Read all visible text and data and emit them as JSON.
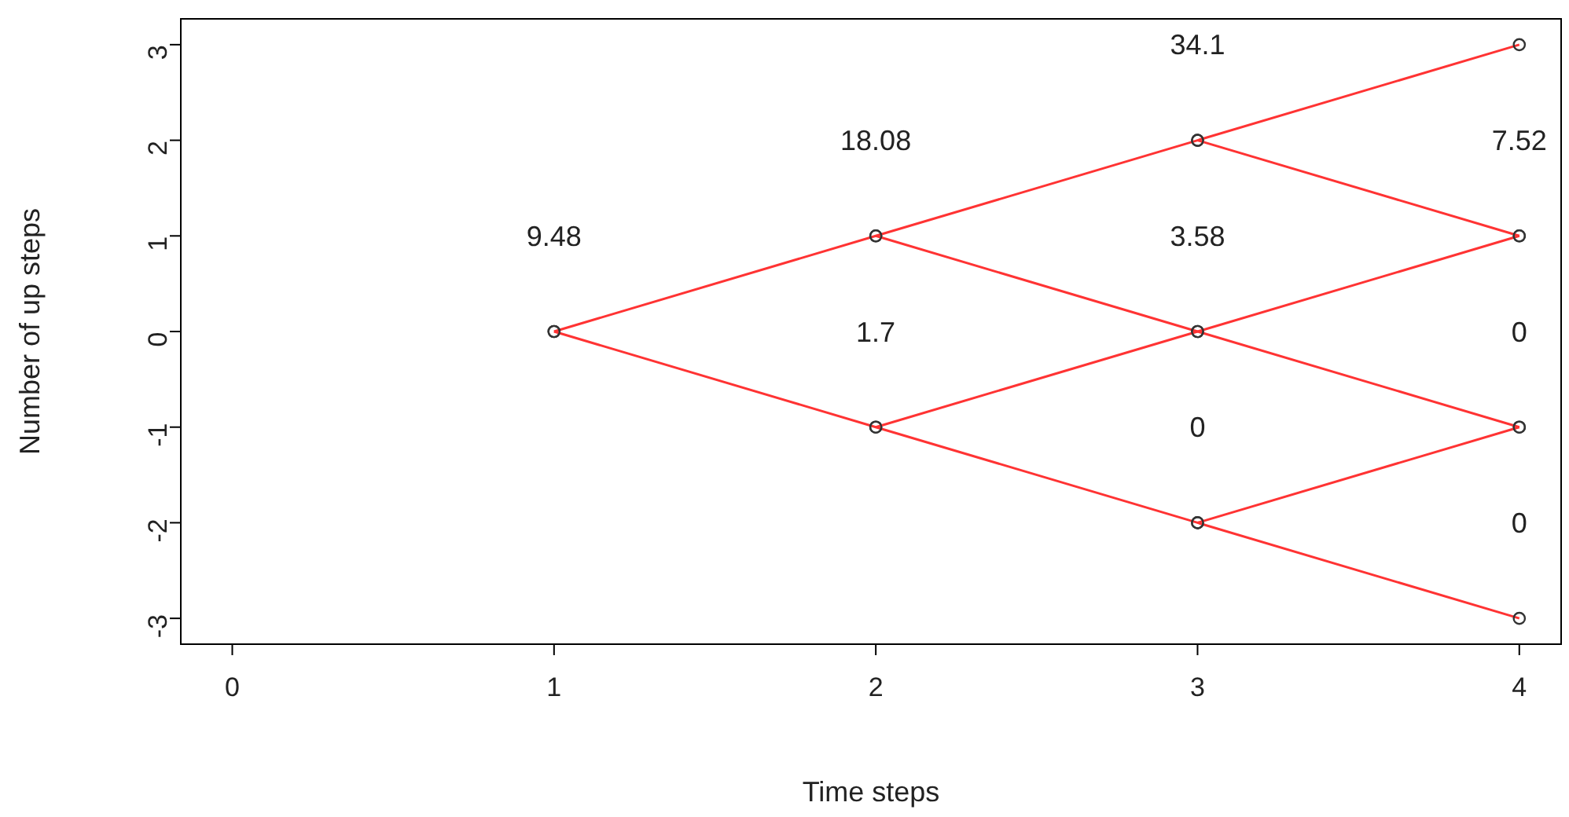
{
  "chart_data": {
    "type": "line",
    "xlabel": "Time steps",
    "ylabel": "Number of up steps",
    "xlim": [
      -0.16,
      4.13
    ],
    "ylim": [
      -3.27,
      3.27
    ],
    "xticks": [
      0,
      1,
      2,
      3,
      4
    ],
    "yticks": [
      -3,
      -2,
      -1,
      0,
      1,
      2,
      3
    ],
    "marker": "circle",
    "line_style": "solid",
    "grid": false,
    "series": [
      {
        "color": "#ff3333",
        "x": [
          1,
          2,
          3,
          4
        ],
        "values": [
          0,
          1,
          2,
          3
        ]
      },
      {
        "color": "#ff3333",
        "x": [
          1,
          2,
          3,
          4
        ],
        "values": [
          0,
          -1,
          -2,
          -3
        ]
      },
      {
        "color": "#ff3333",
        "x": [
          2,
          3,
          4
        ],
        "values": [
          1,
          0,
          -1
        ]
      },
      {
        "color": "#ff3333",
        "x": [
          2,
          3,
          4
        ],
        "values": [
          -1,
          0,
          1
        ]
      },
      {
        "color": "#ff3333",
        "x": [
          3,
          4
        ],
        "values": [
          2,
          1
        ]
      },
      {
        "color": "#ff3333",
        "x": [
          3,
          4
        ],
        "values": [
          -2,
          -1
        ]
      }
    ],
    "annotations": [
      {
        "text": "9.48",
        "x": 1,
        "y": 0
      },
      {
        "text": "18.08",
        "x": 2,
        "y": 1
      },
      {
        "text": "1.7",
        "x": 2,
        "y": -1
      },
      {
        "text": "34.1",
        "x": 3,
        "y": 2
      },
      {
        "text": "3.58",
        "x": 3,
        "y": 0
      },
      {
        "text": "0",
        "x": 3,
        "y": -2
      },
      {
        "text": "7.52",
        "x": 4,
        "y": 1
      },
      {
        "text": "0",
        "x": 4,
        "y": -1
      },
      {
        "text": "0",
        "x": 4,
        "y": -3
      }
    ]
  }
}
